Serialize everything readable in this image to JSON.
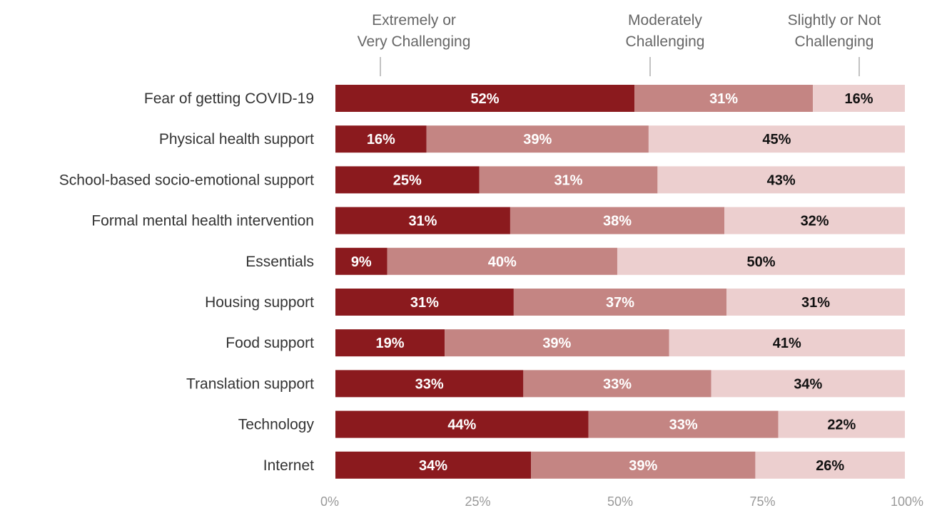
{
  "chart_data": {
    "type": "bar",
    "orientation": "horizontal",
    "stacked": true,
    "legend_placement": "top",
    "grid": false,
    "xlim": [
      0,
      100
    ],
    "x_ticks": [
      "0%",
      "25%",
      "50%",
      "75%",
      "100%"
    ],
    "categories": [
      "Fear of getting COVID-19",
      "Physical health support",
      "School-based socio-emotional support",
      "Formal mental health intervention",
      "Essentials",
      "Housing support",
      "Food support",
      "Translation support",
      "Technology",
      "Internet"
    ],
    "series": [
      {
        "name": "Extremely or Very Challenging",
        "name_lines": [
          "Extremely or",
          "Very Challenging"
        ],
        "color": "#8b1a1e",
        "label_color": "#ffffff",
        "values": [
          52,
          16,
          25,
          31,
          9,
          31,
          19,
          33,
          44,
          34
        ]
      },
      {
        "name": "Moderately Challenging",
        "name_lines": [
          "Moderately",
          "Challenging"
        ],
        "color": "#c48583",
        "label_color": "#ffffff",
        "values": [
          31,
          39,
          31,
          38,
          40,
          37,
          39,
          33,
          33,
          39
        ]
      },
      {
        "name": "Slightly or Not Challenging",
        "name_lines": [
          "Slightly or Not",
          "Challenging"
        ],
        "color": "#eccfcf",
        "label_color": "#111111",
        "values": [
          16,
          45,
          43,
          32,
          50,
          31,
          41,
          34,
          22,
          26
        ]
      }
    ]
  }
}
